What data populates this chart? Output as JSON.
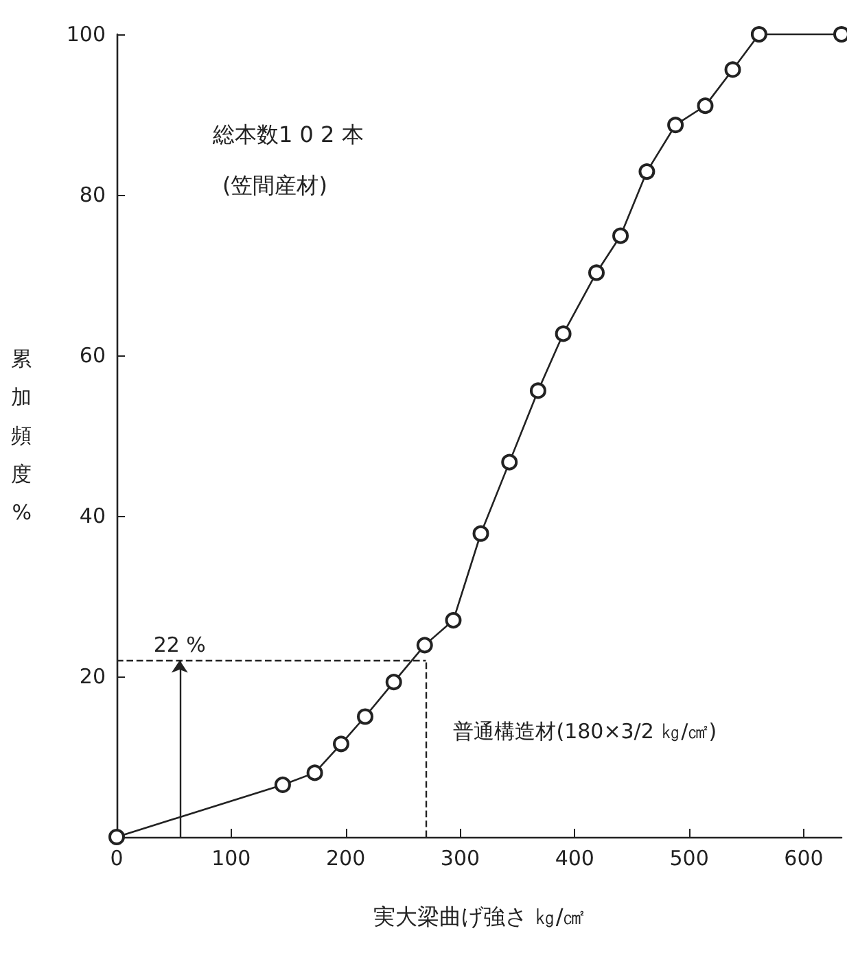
{
  "chart_data": {
    "type": "line",
    "xlabel": "実大梁曲げ強さ ㎏/㎠",
    "ylabel": "累加頻度 %",
    "x": [
      0,
      145,
      173,
      196,
      217,
      242,
      269,
      294,
      318,
      343,
      368,
      390,
      419,
      440,
      463,
      488,
      514,
      538,
      561,
      633
    ],
    "series": [
      {
        "color": "#222222",
        "values": [
          0,
          6.5,
          8,
          11.6,
          15,
          19.3,
          23.9,
          27,
          37.8,
          46.7,
          55.6,
          62.7,
          70.3,
          74.9,
          82.9,
          88.7,
          91.1,
          95.6,
          100,
          100
        ]
      }
    ],
    "xlim": [
      0,
      633
    ],
    "ylim": [
      0,
      100
    ],
    "xticks": [
      0,
      100,
      200,
      300,
      400,
      500,
      600
    ],
    "yticks": [
      {
        "value": 0,
        "label": null
      },
      20,
      40,
      60,
      80,
      100
    ],
    "marker": "circle",
    "line_style": "solid",
    "ref_lines": [
      {
        "axis": "y",
        "value": 22,
        "line_style": "dashed",
        "color": "#222222"
      },
      {
        "axis": "x",
        "value": 270,
        "label": "普通構造材(180×3/2 ㎏/㎠)",
        "line_style": "dashed",
        "color": "#222222"
      }
    ],
    "annotations": [
      "総本数1 0 2 本",
      "(笠間産材)",
      {
        "text": "22 %",
        "x": 55,
        "y": 22
      }
    ]
  }
}
